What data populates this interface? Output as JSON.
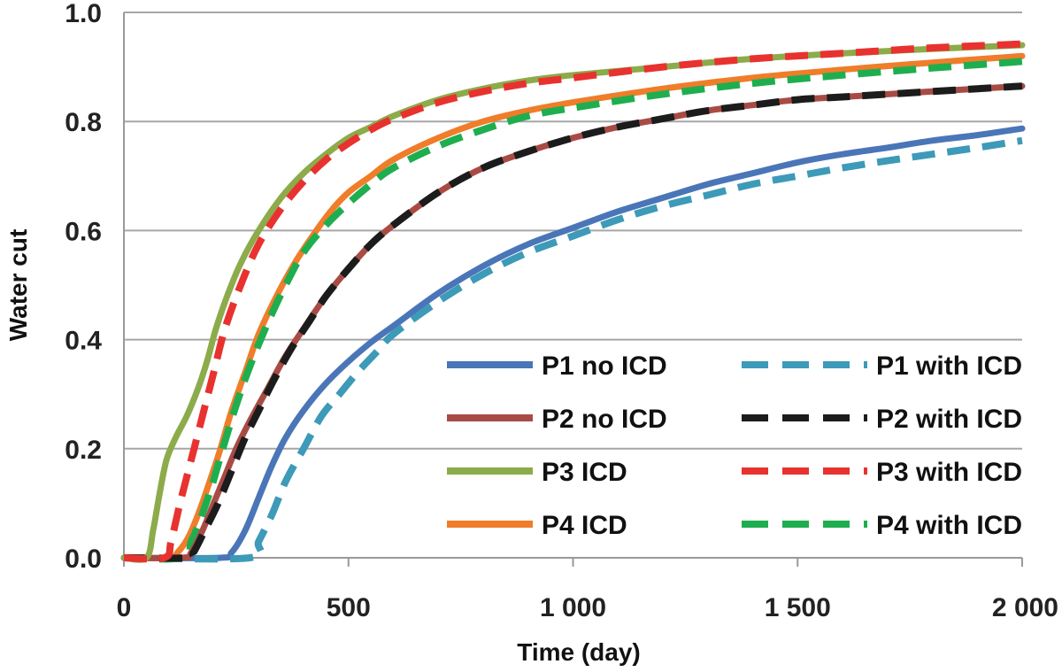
{
  "chart_data": {
    "type": "line",
    "title": "",
    "xlabel": "Time (day)",
    "ylabel": "Water cut",
    "xlim": [
      0,
      2000
    ],
    "ylim": [
      0,
      1.0
    ],
    "x_ticks": [
      0,
      500,
      1000,
      1500,
      2000
    ],
    "x_tick_labels": [
      "0",
      "500",
      "1 000",
      "1 500",
      "2 000"
    ],
    "y_ticks": [
      0,
      0.2,
      0.4,
      0.6,
      0.8,
      1.0
    ],
    "y_tick_labels": [
      "0.0",
      "0.2",
      "0.4",
      "0.6",
      "0.8",
      "1.0"
    ],
    "grid": "horizontal",
    "legend_position": "bottom-right",
    "series": [
      {
        "name": "P1 no ICD",
        "color": "#4a76b8",
        "style": "solid",
        "points": [
          [
            0,
            0
          ],
          [
            215,
            0
          ],
          [
            240,
            0.01
          ],
          [
            270,
            0.05
          ],
          [
            300,
            0.11
          ],
          [
            330,
            0.17
          ],
          [
            360,
            0.22
          ],
          [
            400,
            0.27
          ],
          [
            450,
            0.32
          ],
          [
            500,
            0.36
          ],
          [
            550,
            0.395
          ],
          [
            600,
            0.425
          ],
          [
            700,
            0.485
          ],
          [
            800,
            0.535
          ],
          [
            900,
            0.575
          ],
          [
            1000,
            0.605
          ],
          [
            1100,
            0.635
          ],
          [
            1200,
            0.66
          ],
          [
            1300,
            0.685
          ],
          [
            1400,
            0.705
          ],
          [
            1500,
            0.725
          ],
          [
            1600,
            0.74
          ],
          [
            1700,
            0.752
          ],
          [
            1800,
            0.765
          ],
          [
            1900,
            0.775
          ],
          [
            2000,
            0.787
          ]
        ]
      },
      {
        "name": "P2 no ICD",
        "color": "#a94b45",
        "style": "solid",
        "points": [
          [
            0,
            0
          ],
          [
            130,
            0
          ],
          [
            150,
            0.01
          ],
          [
            175,
            0.05
          ],
          [
            200,
            0.1
          ],
          [
            225,
            0.15
          ],
          [
            250,
            0.2
          ],
          [
            280,
            0.25
          ],
          [
            320,
            0.31
          ],
          [
            360,
            0.37
          ],
          [
            400,
            0.42
          ],
          [
            450,
            0.48
          ],
          [
            500,
            0.53
          ],
          [
            550,
            0.575
          ],
          [
            600,
            0.61
          ],
          [
            700,
            0.67
          ],
          [
            800,
            0.715
          ],
          [
            900,
            0.745
          ],
          [
            1000,
            0.77
          ],
          [
            1100,
            0.79
          ],
          [
            1200,
            0.805
          ],
          [
            1300,
            0.82
          ],
          [
            1400,
            0.83
          ],
          [
            1500,
            0.84
          ],
          [
            1600,
            0.845
          ],
          [
            1700,
            0.85
          ],
          [
            1800,
            0.855
          ],
          [
            1900,
            0.86
          ],
          [
            2000,
            0.865
          ]
        ]
      },
      {
        "name": "P3 ICD",
        "color": "#8cab4a",
        "style": "solid",
        "points": [
          [
            0,
            0
          ],
          [
            50,
            0
          ],
          [
            65,
            0.05
          ],
          [
            80,
            0.12
          ],
          [
            95,
            0.18
          ],
          [
            115,
            0.22
          ],
          [
            140,
            0.26
          ],
          [
            165,
            0.31
          ],
          [
            185,
            0.36
          ],
          [
            205,
            0.42
          ],
          [
            230,
            0.48
          ],
          [
            260,
            0.54
          ],
          [
            300,
            0.6
          ],
          [
            350,
            0.66
          ],
          [
            400,
            0.705
          ],
          [
            450,
            0.74
          ],
          [
            500,
            0.77
          ],
          [
            550,
            0.79
          ],
          [
            600,
            0.81
          ],
          [
            700,
            0.84
          ],
          [
            800,
            0.86
          ],
          [
            900,
            0.875
          ],
          [
            1000,
            0.885
          ],
          [
            1200,
            0.9
          ],
          [
            1400,
            0.915
          ],
          [
            1600,
            0.925
          ],
          [
            1800,
            0.933
          ],
          [
            2000,
            0.94
          ]
        ]
      },
      {
        "name": "P4 ICD",
        "color": "#ef7d2a",
        "style": "solid",
        "points": [
          [
            0,
            0
          ],
          [
            100,
            0
          ],
          [
            120,
            0.01
          ],
          [
            145,
            0.04
          ],
          [
            170,
            0.09
          ],
          [
            195,
            0.15
          ],
          [
            215,
            0.2
          ],
          [
            240,
            0.27
          ],
          [
            270,
            0.34
          ],
          [
            300,
            0.41
          ],
          [
            340,
            0.48
          ],
          [
            380,
            0.54
          ],
          [
            420,
            0.59
          ],
          [
            460,
            0.635
          ],
          [
            500,
            0.67
          ],
          [
            550,
            0.7
          ],
          [
            600,
            0.73
          ],
          [
            700,
            0.77
          ],
          [
            800,
            0.8
          ],
          [
            900,
            0.82
          ],
          [
            1000,
            0.835
          ],
          [
            1200,
            0.86
          ],
          [
            1400,
            0.88
          ],
          [
            1600,
            0.895
          ],
          [
            1800,
            0.908
          ],
          [
            2000,
            0.92
          ]
        ]
      },
      {
        "name": "P1 with ICD",
        "color": "#3d9ab8",
        "style": "dashed",
        "points": [
          [
            0,
            0
          ],
          [
            280,
            0
          ],
          [
            300,
            0.03
          ],
          [
            330,
            0.08
          ],
          [
            360,
            0.14
          ],
          [
            400,
            0.2
          ],
          [
            440,
            0.26
          ],
          [
            480,
            0.3
          ],
          [
            520,
            0.34
          ],
          [
            560,
            0.375
          ],
          [
            600,
            0.41
          ],
          [
            700,
            0.47
          ],
          [
            800,
            0.52
          ],
          [
            900,
            0.56
          ],
          [
            1000,
            0.59
          ],
          [
            1100,
            0.62
          ],
          [
            1200,
            0.645
          ],
          [
            1300,
            0.665
          ],
          [
            1400,
            0.685
          ],
          [
            1500,
            0.7
          ],
          [
            1600,
            0.715
          ],
          [
            1700,
            0.728
          ],
          [
            1800,
            0.74
          ],
          [
            1900,
            0.752
          ],
          [
            2000,
            0.765
          ]
        ]
      },
      {
        "name": "P2 with ICD",
        "color": "#1c1c1c",
        "style": "dashed",
        "points": [
          [
            0,
            0
          ],
          [
            140,
            0
          ],
          [
            155,
            0.01
          ],
          [
            180,
            0.05
          ],
          [
            210,
            0.1
          ],
          [
            240,
            0.16
          ],
          [
            270,
            0.22
          ],
          [
            300,
            0.27
          ],
          [
            330,
            0.32
          ],
          [
            370,
            0.38
          ],
          [
            410,
            0.43
          ],
          [
            450,
            0.48
          ],
          [
            500,
            0.53
          ],
          [
            550,
            0.575
          ],
          [
            600,
            0.61
          ],
          [
            700,
            0.67
          ],
          [
            800,
            0.715
          ],
          [
            900,
            0.745
          ],
          [
            1000,
            0.77
          ],
          [
            1100,
            0.79
          ],
          [
            1200,
            0.805
          ],
          [
            1300,
            0.82
          ],
          [
            1400,
            0.83
          ],
          [
            1500,
            0.84
          ],
          [
            1600,
            0.845
          ],
          [
            1700,
            0.85
          ],
          [
            1800,
            0.855
          ],
          [
            1900,
            0.86
          ],
          [
            2000,
            0.865
          ]
        ]
      },
      {
        "name": "P3 with ICD",
        "color": "#e8322f",
        "style": "dashed",
        "points": [
          [
            0,
            0
          ],
          [
            90,
            0
          ],
          [
            105,
            0.03
          ],
          [
            125,
            0.1
          ],
          [
            150,
            0.18
          ],
          [
            175,
            0.26
          ],
          [
            200,
            0.34
          ],
          [
            225,
            0.42
          ],
          [
            260,
            0.5
          ],
          [
            300,
            0.575
          ],
          [
            350,
            0.64
          ],
          [
            400,
            0.69
          ],
          [
            450,
            0.73
          ],
          [
            500,
            0.76
          ],
          [
            550,
            0.785
          ],
          [
            600,
            0.805
          ],
          [
            700,
            0.835
          ],
          [
            800,
            0.855
          ],
          [
            900,
            0.87
          ],
          [
            1000,
            0.88
          ],
          [
            1200,
            0.9
          ],
          [
            1400,
            0.915
          ],
          [
            1600,
            0.925
          ],
          [
            1800,
            0.935
          ],
          [
            2000,
            0.942
          ]
        ]
      },
      {
        "name": "P4 with ICD",
        "color": "#1fae4f",
        "style": "dashed",
        "points": [
          [
            0,
            0
          ],
          [
            130,
            0
          ],
          [
            150,
            0.03
          ],
          [
            170,
            0.07
          ],
          [
            195,
            0.13
          ],
          [
            220,
            0.2
          ],
          [
            250,
            0.28
          ],
          [
            280,
            0.35
          ],
          [
            320,
            0.43
          ],
          [
            360,
            0.5
          ],
          [
            400,
            0.56
          ],
          [
            450,
            0.61
          ],
          [
            500,
            0.65
          ],
          [
            550,
            0.685
          ],
          [
            600,
            0.715
          ],
          [
            700,
            0.755
          ],
          [
            800,
            0.785
          ],
          [
            900,
            0.81
          ],
          [
            1000,
            0.825
          ],
          [
            1200,
            0.85
          ],
          [
            1400,
            0.87
          ],
          [
            1600,
            0.885
          ],
          [
            1800,
            0.898
          ],
          [
            2000,
            0.91
          ]
        ]
      }
    ]
  }
}
